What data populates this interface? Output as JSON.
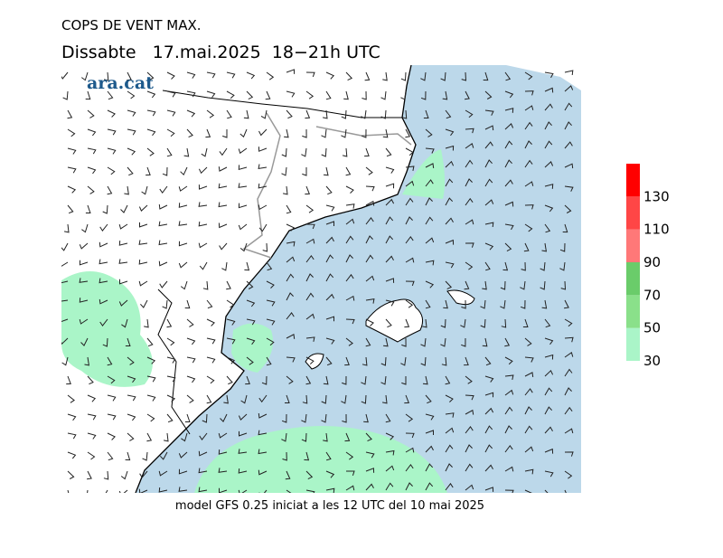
{
  "header": {
    "title": "COPS DE VENT MAX.",
    "subtitle": "Dissabte   17.mai.2025  18−21h UTC",
    "logo": "ara.cat"
  },
  "colorbar": {
    "ticks": [
      30,
      50,
      70,
      90,
      110,
      130
    ],
    "colors": [
      "#aaf5c8",
      "#8ae08a",
      "#6acc6a",
      "#ff7878",
      "#ff4646",
      "#ff0000"
    ]
  },
  "footer": "model GFS 0.25 iniciat a les 12 UTC del 10 mai 2025"
}
